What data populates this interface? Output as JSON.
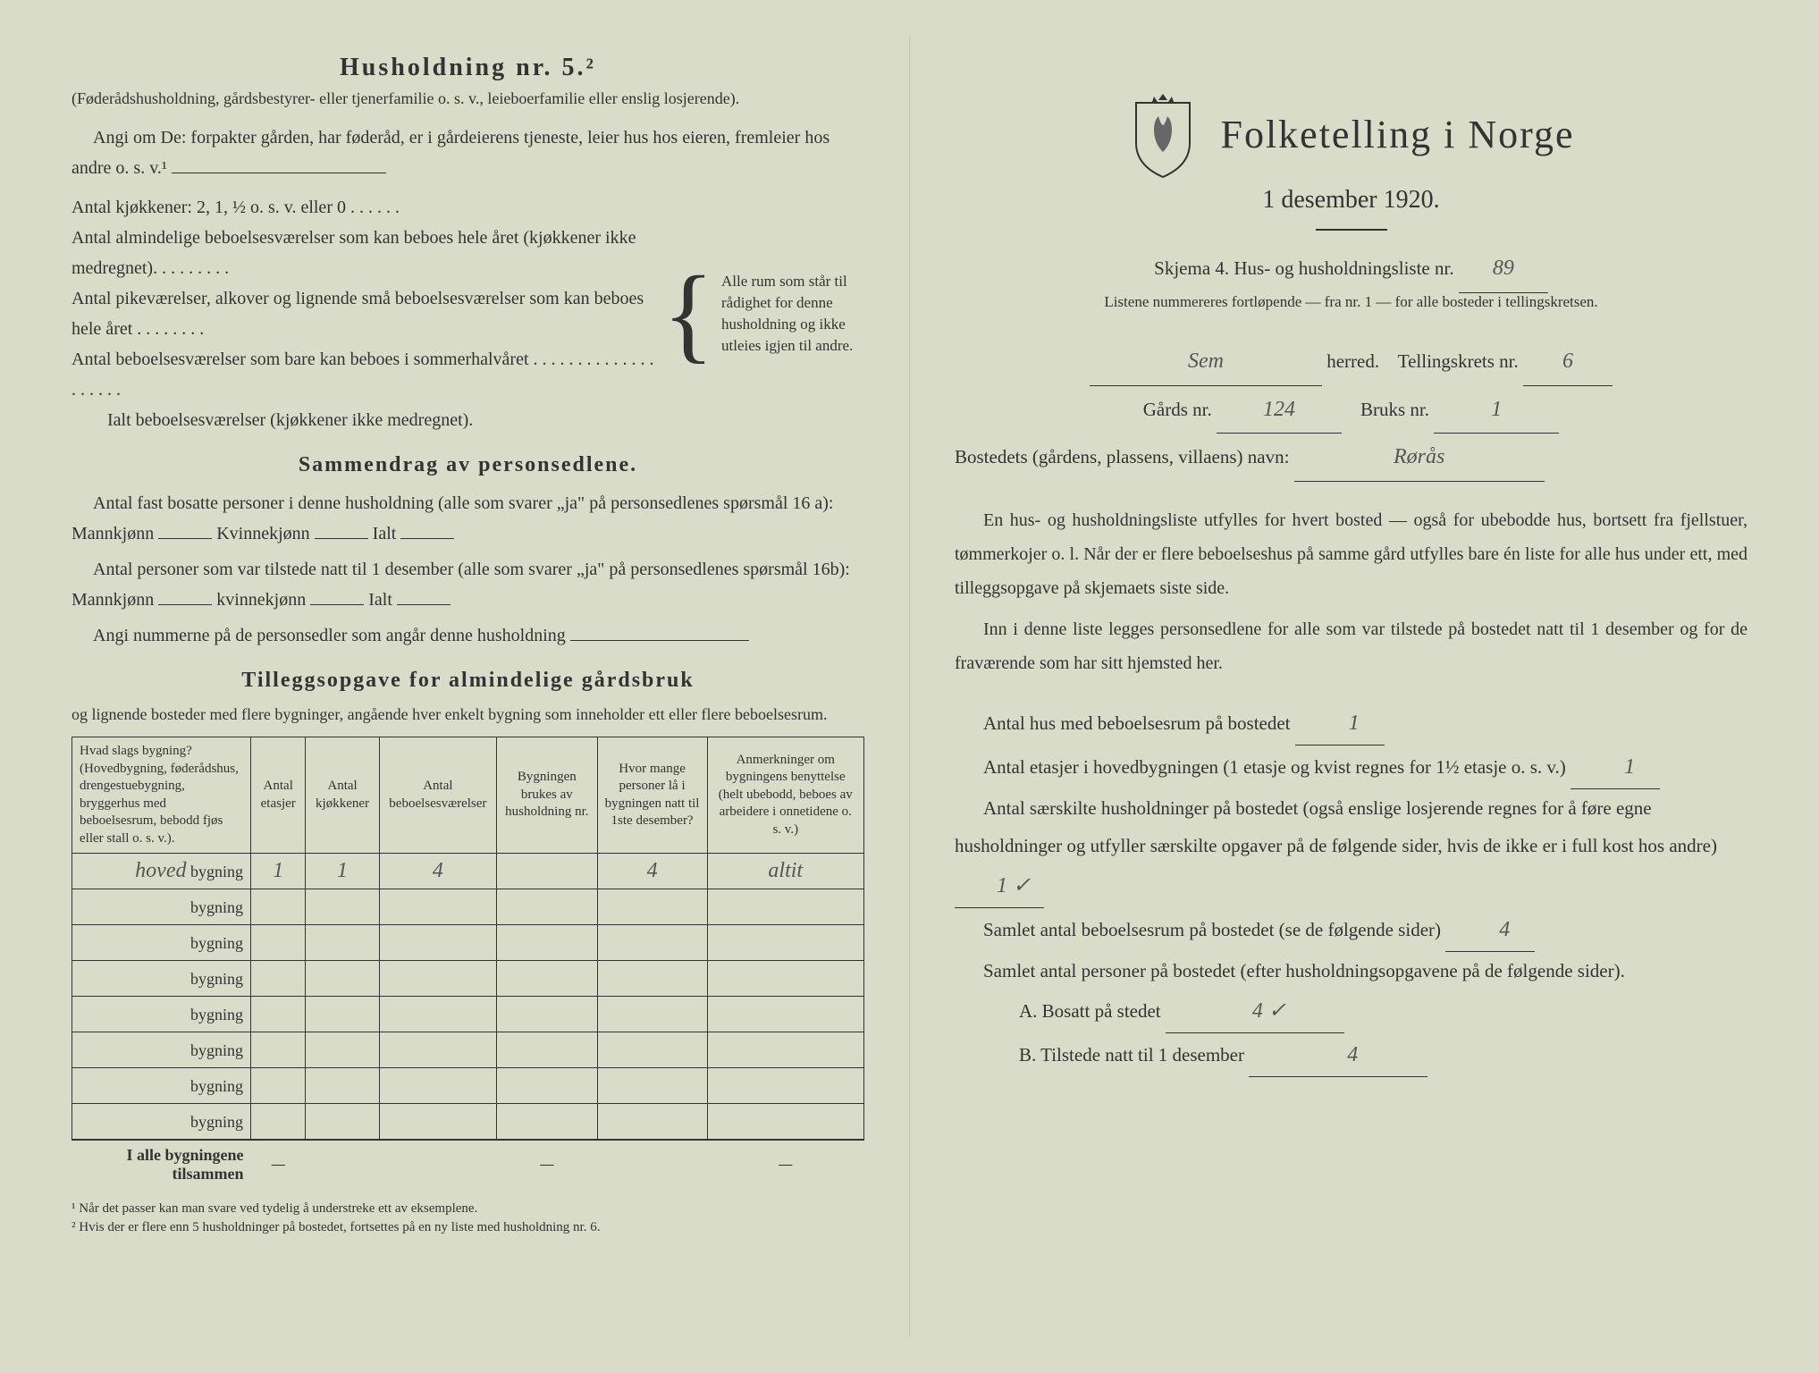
{
  "left": {
    "heading": "Husholdning nr. 5.²",
    "subtitle": "(Føderådshusholdning, gårdsbestyrer- eller tjenerfamilie o. s. v., leieboerfamilie eller enslig losjerende).",
    "para1": "Angi om De: forpakter gården, har føderåd, er i gårdeierens tjeneste, leier hus hos eieren, fremleier hos andre o. s. v.¹",
    "room_lines": {
      "l1": "Antal kjøkkener: 2, 1, ½ o. s. v. eller 0 . . . . . .",
      "l2": "Antal almindelige beboelsesværelser som kan beboes hele året (kjøkkener ikke medregnet). . . . . . . . .",
      "l3": "Antal pikeværelser, alkover og lignende små beboelsesværelser som kan beboes hele året . . . . . . . .",
      "l4": "Antal beboelsesværelser som bare kan beboes i sommerhalvåret . . . . . . . . . . . . . . . . . . . .",
      "l5": "Ialt beboelsesværelser (kjøkkener ikke medregnet).",
      "brace": "Alle rum som står til rådighet for denne husholdning og ikke utleies igjen til andre."
    },
    "summary_heading": "Sammendrag av personsedlene.",
    "summary_p1a": "Antal fast bosatte personer i denne husholdning (alle som svarer „ja\" på personsedlenes spørsmål 16 a): Mannkjønn",
    "summary_p1b": "Kvinnekjønn",
    "summary_p1c": "Ialt",
    "summary_p2a": "Antal personer som var tilstede natt til 1 desember (alle som svarer „ja\" på personsedlenes spørsmål 16b): Mannkjønn",
    "summary_p2b": "kvinnekjønn",
    "summary_p2c": "Ialt",
    "summary_p3": "Angi nummerne på de personsedler som angår denne husholdning",
    "addl_heading": "Tilleggsopgave for almindelige gårdsbruk",
    "addl_intro": "og lignende bosteder med flere bygninger, angående hver enkelt bygning som inneholder ett eller flere beboelsesrum.",
    "table": {
      "headers": {
        "h1": "Hvad slags bygning?\n(Hovedbygning, føderådshus, drengestuebygning, bryggerhus med beboelsesrum, bebodd fjøs eller stall o. s. v.).",
        "h2": "Antal etasjer",
        "h3": "Antal kjøkkener",
        "h4": "Antal beboelsesværelser",
        "h5": "Bygningen brukes av husholdning nr.",
        "h6": "Hvor mange personer lå i bygningen natt til 1ste desember?",
        "h7": "Anmerkninger om bygningens benyttelse (helt ubebodd, beboes av arbeidere i onnetidene o. s. v.)"
      },
      "row_label_prefix": "bygning",
      "rows": [
        {
          "name": "hoved",
          "etasjer": "1",
          "kjokken": "1",
          "vaer": "4",
          "hush": "",
          "personer": "4",
          "anm": "altit"
        },
        {
          "name": "",
          "etasjer": "",
          "kjokken": "",
          "vaer": "",
          "hush": "",
          "personer": "",
          "anm": ""
        },
        {
          "name": "",
          "etasjer": "",
          "kjokken": "",
          "vaer": "",
          "hush": "",
          "personer": "",
          "anm": ""
        },
        {
          "name": "",
          "etasjer": "",
          "kjokken": "",
          "vaer": "",
          "hush": "",
          "personer": "",
          "anm": ""
        },
        {
          "name": "",
          "etasjer": "",
          "kjokken": "",
          "vaer": "",
          "hush": "",
          "personer": "",
          "anm": ""
        },
        {
          "name": "",
          "etasjer": "",
          "kjokken": "",
          "vaer": "",
          "hush": "",
          "personer": "",
          "anm": ""
        },
        {
          "name": "",
          "etasjer": "",
          "kjokken": "",
          "vaer": "",
          "hush": "",
          "personer": "",
          "anm": ""
        },
        {
          "name": "",
          "etasjer": "",
          "kjokken": "",
          "vaer": "",
          "hush": "",
          "personer": "",
          "anm": ""
        }
      ],
      "total_label": "I alle bygningene tilsammen",
      "dash": "—"
    },
    "footnote1": "¹ Når det passer kan man svare ved tydelig å understreke ett av eksemplene.",
    "footnote2": "² Hvis der er flere enn 5 husholdninger på bostedet, fortsettes på en ny liste med husholdning nr. 6."
  },
  "right": {
    "main_title": "Folketelling i Norge",
    "date": "1 desember 1920.",
    "schema_line_a": "Skjema 4.  Hus- og husholdningsliste nr.",
    "schema_value": "89",
    "schema_note": "Listene nummereres fortløpende — fra nr. 1 — for alle bosteder i tellingskretsen.",
    "herred_value": "Sem",
    "herred_label": "herred.",
    "krets_label": "Tellingskrets nr.",
    "krets_value": "6",
    "gard_label": "Gårds nr.",
    "gard_value": "124",
    "bruk_label": "Bruks nr.",
    "bruk_value": "1",
    "bosted_label": "Bostedets (gårdens, plassens, villaens) navn:",
    "bosted_value": "Rørås",
    "body1": "En hus- og husholdningsliste utfylles for hvert bosted — også for ubebodde hus, bortsett fra fjellstuer, tømmerkojer o. l. Når der er flere beboelseshus på samme gård utfylles bare én liste for alle hus under ett, med tilleggsopgave på skjemaets siste side.",
    "body2": "Inn i denne liste legges personsedlene for alle som var tilstede på bostedet natt til 1 desember og for de fraværende som har sitt hjemsted her.",
    "f1_label": "Antal hus med beboelsesrum på bostedet",
    "f1_value": "1",
    "f2_label_a": "Antal etasjer i hovedbygningen (1 etasje og kvist regnes for 1½ etasje o. s. v.)",
    "f2_value": "1",
    "f3_label": "Antal særskilte husholdninger på bostedet (også enslige losjerende regnes for å føre egne husholdninger og utfyller særskilte opgaver på de følgende sider, hvis de ikke er i full kost hos andre)",
    "f3_value": "1 ✓",
    "f4_label": "Samlet antal beboelsesrum på bostedet (se de følgende sider)",
    "f4_value": "4",
    "f5_label": "Samlet antal personer på bostedet (efter husholdningsopgavene på de følgende sider).",
    "fA_label": "A.  Bosatt på stedet",
    "fA_value": "4 ✓",
    "fB_label": "B.  Tilstede natt til 1 desember",
    "fB_value": "4"
  },
  "colors": {
    "paper": "#d8dcc8",
    "ink": "#333333",
    "handwriting": "#555555"
  }
}
